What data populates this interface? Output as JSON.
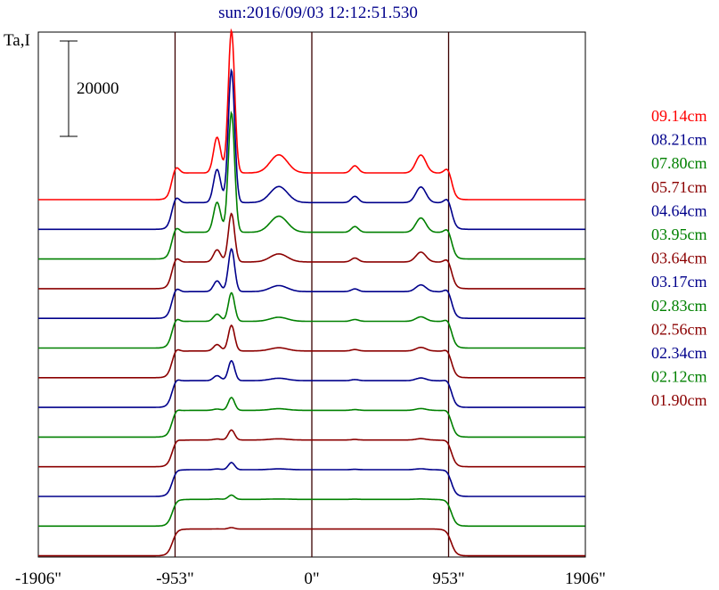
{
  "chart_data": {
    "type": "line",
    "title": "sun:2016/09/03 12:12:51.530",
    "ylabel": "Ta,I",
    "scale_bar_label": "20000",
    "x": {
      "unit": "arcsec",
      "lim": [
        -1906,
        1906
      ],
      "ticks": [
        -1906,
        -953,
        0,
        953,
        1906
      ],
      "tick_labels": [
        "-1906\"",
        "-953\"",
        "0\"",
        "953\"",
        "1906\""
      ],
      "vlines": [
        -953,
        0,
        953
      ]
    },
    "grid": false,
    "legend_position": "right",
    "series": [
      {
        "name": "09.14cm",
        "color": "#ff0000",
        "peak": 1.0,
        "side_bump": 0.45,
        "right_bump": 0.4
      },
      {
        "name": "08.21cm",
        "color": "#00008b",
        "peak": 0.93,
        "side_bump": 0.4,
        "right_bump": 0.35
      },
      {
        "name": "07.80cm",
        "color": "#008000",
        "peak": 0.84,
        "side_bump": 0.4,
        "right_bump": 0.32
      },
      {
        "name": "05.71cm",
        "color": "#8b0000",
        "peak": 0.34,
        "side_bump": 0.2,
        "right_bump": 0.22
      },
      {
        "name": "04.64cm",
        "color": "#00008b",
        "peak": 0.3,
        "side_bump": 0.15,
        "right_bump": 0.15
      },
      {
        "name": "03.95cm",
        "color": "#008000",
        "peak": 0.2,
        "side_bump": 0.1,
        "right_bump": 0.1
      },
      {
        "name": "03.64cm",
        "color": "#8b0000",
        "peak": 0.18,
        "side_bump": 0.08,
        "right_bump": 0.08
      },
      {
        "name": "03.17cm",
        "color": "#00008b",
        "peak": 0.14,
        "side_bump": 0.06,
        "right_bump": 0.06
      },
      {
        "name": "02.83cm",
        "color": "#008000",
        "peak": 0.09,
        "side_bump": 0.04,
        "right_bump": 0.04
      },
      {
        "name": "02.56cm",
        "color": "#8b0000",
        "peak": 0.07,
        "side_bump": 0.03,
        "right_bump": 0.03
      },
      {
        "name": "02.34cm",
        "color": "#00008b",
        "peak": 0.05,
        "side_bump": 0.02,
        "right_bump": 0.02
      },
      {
        "name": "02.12cm",
        "color": "#008000",
        "peak": 0.03,
        "side_bump": 0.01,
        "right_bump": 0.01
      },
      {
        "name": "01.90cm",
        "color": "#8b0000",
        "peak": 0.01,
        "side_bump": 0.0,
        "right_bump": 0.0
      }
    ]
  }
}
